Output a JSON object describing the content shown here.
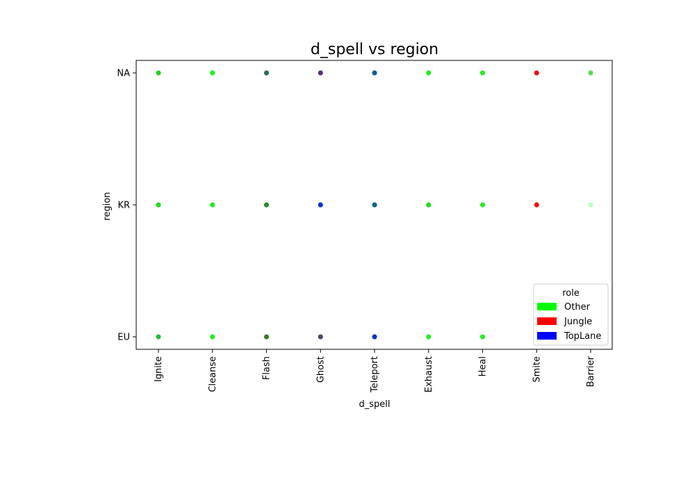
{
  "chart_data": {
    "type": "scatter",
    "title": "d_spell vs region",
    "xlabel": "d_spell",
    "ylabel": "region",
    "x_categories": [
      "Ignite",
      "Cleanse",
      "Flash",
      "Ghost",
      "Teleport",
      "Exhaust",
      "Heal",
      "Smite",
      "Barrier"
    ],
    "y_categories": [
      "EU",
      "KR",
      "NA"
    ],
    "grid": false,
    "legend": {
      "title": "role",
      "placement": "bottom-right",
      "entries": [
        {
          "label": "Other",
          "color": "#00ff00"
        },
        {
          "label": "Jungle",
          "color": "#ff0000"
        },
        {
          "label": "TopLane",
          "color": "#0000ff"
        }
      ]
    },
    "points": [
      {
        "x": "Ignite",
        "y": "NA",
        "color": "#1fd41f"
      },
      {
        "x": "Cleanse",
        "y": "NA",
        "color": "#22ee22"
      },
      {
        "x": "Flash",
        "y": "NA",
        "color": "#2a6e5a"
      },
      {
        "x": "Ghost",
        "y": "NA",
        "color": "#55307a"
      },
      {
        "x": "Teleport",
        "y": "NA",
        "color": "#0f5a9a"
      },
      {
        "x": "Exhaust",
        "y": "NA",
        "color": "#22ee22"
      },
      {
        "x": "Heal",
        "y": "NA",
        "color": "#22ee22"
      },
      {
        "x": "Smite",
        "y": "NA",
        "color": "#ee1111"
      },
      {
        "x": "Barrier",
        "y": "NA",
        "color": "#55dd55"
      },
      {
        "x": "Ignite",
        "y": "KR",
        "color": "#22dd22"
      },
      {
        "x": "Cleanse",
        "y": "KR",
        "color": "#22ee22"
      },
      {
        "x": "Flash",
        "y": "KR",
        "color": "#2a8a2a"
      },
      {
        "x": "Ghost",
        "y": "KR",
        "color": "#1133cc"
      },
      {
        "x": "Teleport",
        "y": "KR",
        "color": "#116688"
      },
      {
        "x": "Exhaust",
        "y": "KR",
        "color": "#22dd22"
      },
      {
        "x": "Heal",
        "y": "KR",
        "color": "#22ee22"
      },
      {
        "x": "Smite",
        "y": "KR",
        "color": "#ee1111"
      },
      {
        "x": "Barrier",
        "y": "KR",
        "color": "#bbffbb"
      },
      {
        "x": "Ignite",
        "y": "EU",
        "color": "#22bb44"
      },
      {
        "x": "Cleanse",
        "y": "EU",
        "color": "#22ee22"
      },
      {
        "x": "Flash",
        "y": "EU",
        "color": "#3a7a2a"
      },
      {
        "x": "Ghost",
        "y": "EU",
        "color": "#554466"
      },
      {
        "x": "Teleport",
        "y": "EU",
        "color": "#1133bb"
      },
      {
        "x": "Exhaust",
        "y": "EU",
        "color": "#22ee22"
      },
      {
        "x": "Heal",
        "y": "EU",
        "color": "#22ee22"
      }
    ]
  }
}
